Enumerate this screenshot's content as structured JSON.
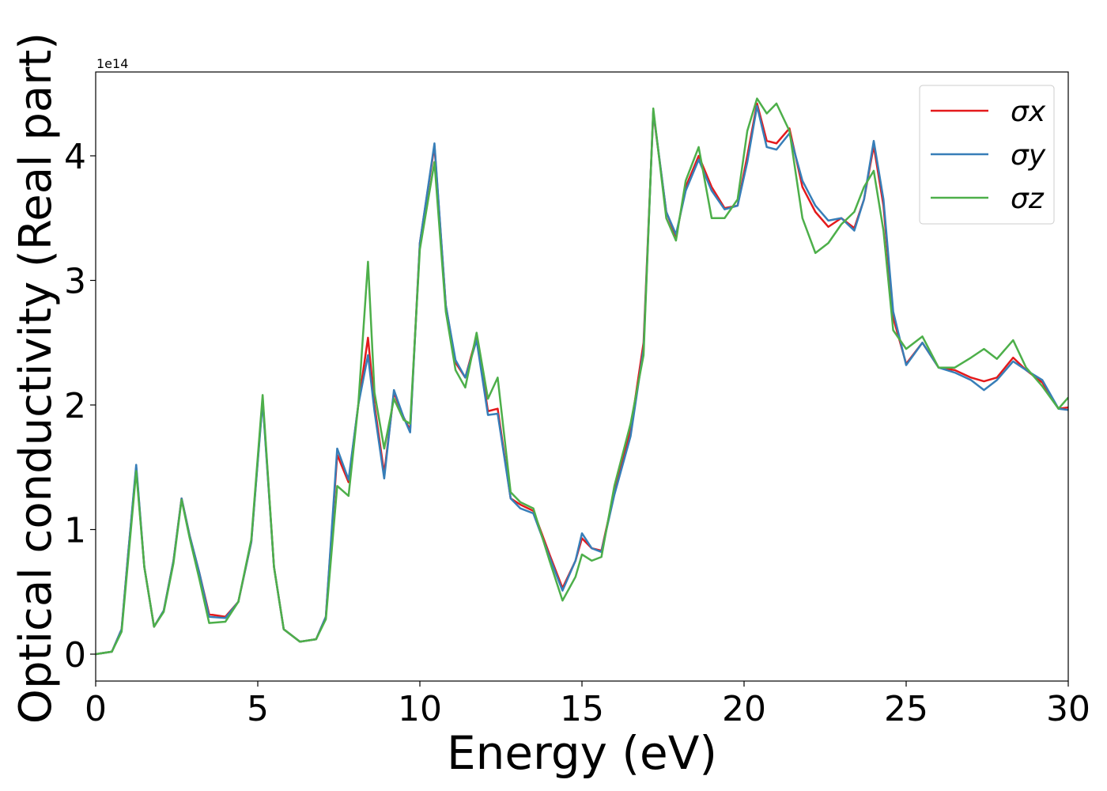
{
  "chart_data": {
    "type": "line",
    "xlabel": "Energy (eV)",
    "ylabel": "Optical conductivity (Real part)",
    "y_offset_label": "1e14",
    "xlim": [
      0,
      30
    ],
    "ylim": [
      -0.216,
      4.673
    ],
    "xticks": [
      0,
      5,
      10,
      15,
      20,
      25,
      30
    ],
    "yticks": [
      0,
      1,
      2,
      3,
      4
    ],
    "legend": "upper right",
    "x": [
      0,
      0.5,
      0.8,
      1.0,
      1.25,
      1.5,
      1.8,
      2.1,
      2.4,
      2.65,
      2.9,
      3.2,
      3.5,
      4.0,
      4.4,
      4.8,
      5.15,
      5.5,
      5.8,
      6.3,
      6.8,
      7.1,
      7.45,
      7.8,
      8.1,
      8.4,
      8.6,
      8.9,
      9.2,
      9.5,
      9.7,
      10.0,
      10.45,
      10.8,
      11.1,
      11.4,
      11.75,
      12.1,
      12.4,
      12.8,
      13.1,
      13.5,
      14.0,
      14.4,
      14.8,
      15.0,
      15.3,
      15.6,
      16.0,
      16.5,
      16.9,
      17.2,
      17.6,
      17.9,
      18.2,
      18.6,
      19.0,
      19.4,
      19.8,
      20.1,
      20.4,
      20.7,
      21.0,
      21.4,
      21.8,
      22.2,
      22.6,
      23.0,
      23.4,
      23.7,
      24.0,
      24.3,
      24.6,
      25.0,
      25.5,
      26.0,
      26.5,
      27.0,
      27.4,
      27.8,
      28.3,
      28.7,
      29.2,
      29.7,
      30
    ],
    "series": [
      {
        "name": "σx",
        "color": "#e41a1c",
        "values": [
          0,
          0.02,
          0.2,
          0.8,
          1.5,
          0.7,
          0.22,
          0.35,
          0.75,
          1.25,
          0.95,
          0.65,
          0.32,
          0.3,
          0.42,
          0.9,
          2.05,
          0.7,
          0.2,
          0.1,
          0.12,
          0.3,
          1.6,
          1.38,
          2.0,
          2.54,
          2.0,
          1.45,
          2.1,
          1.9,
          1.8,
          3.3,
          4.08,
          2.8,
          2.34,
          2.22,
          2.55,
          1.95,
          1.97,
          1.25,
          1.2,
          1.15,
          0.8,
          0.53,
          0.75,
          0.93,
          0.85,
          0.83,
          1.3,
          1.8,
          2.5,
          4.35,
          3.55,
          3.35,
          3.75,
          4.0,
          3.75,
          3.58,
          3.6,
          4.0,
          4.42,
          4.12,
          4.1,
          4.22,
          3.75,
          3.55,
          3.43,
          3.5,
          3.42,
          3.65,
          4.08,
          3.6,
          2.7,
          2.33,
          2.5,
          2.3,
          2.28,
          2.22,
          2.19,
          2.22,
          2.38,
          2.28,
          2.18,
          1.97,
          1.98
        ]
      },
      {
        "name": "σy",
        "color": "#377eb8",
        "values": [
          0,
          0.02,
          0.2,
          0.8,
          1.52,
          0.7,
          0.22,
          0.35,
          0.75,
          1.25,
          0.95,
          0.65,
          0.3,
          0.29,
          0.42,
          0.9,
          2.03,
          0.7,
          0.2,
          0.1,
          0.12,
          0.3,
          1.65,
          1.4,
          2.0,
          2.4,
          1.95,
          1.41,
          2.12,
          1.9,
          1.78,
          3.3,
          4.1,
          2.8,
          2.36,
          2.22,
          2.52,
          1.92,
          1.93,
          1.25,
          1.17,
          1.13,
          0.78,
          0.51,
          0.75,
          0.97,
          0.85,
          0.82,
          1.28,
          1.75,
          2.45,
          4.36,
          3.55,
          3.37,
          3.72,
          3.97,
          3.72,
          3.57,
          3.6,
          3.95,
          4.4,
          4.07,
          4.05,
          4.18,
          3.8,
          3.6,
          3.48,
          3.5,
          3.4,
          3.65,
          4.12,
          3.65,
          2.75,
          2.32,
          2.5,
          2.3,
          2.26,
          2.2,
          2.12,
          2.2,
          2.35,
          2.28,
          2.2,
          1.97,
          1.96
        ]
      },
      {
        "name": "σz",
        "color": "#4daf4a",
        "values": [
          0,
          0.02,
          0.18,
          0.75,
          1.47,
          0.7,
          0.22,
          0.34,
          0.73,
          1.24,
          0.93,
          0.6,
          0.25,
          0.26,
          0.42,
          0.92,
          2.08,
          0.7,
          0.2,
          0.1,
          0.12,
          0.28,
          1.35,
          1.27,
          2.0,
          3.15,
          2.1,
          1.65,
          2.05,
          1.88,
          1.85,
          3.25,
          3.95,
          2.75,
          2.28,
          2.14,
          2.58,
          2.05,
          2.22,
          1.3,
          1.22,
          1.17,
          0.75,
          0.43,
          0.62,
          0.8,
          0.75,
          0.78,
          1.35,
          1.85,
          2.4,
          4.38,
          3.5,
          3.32,
          3.8,
          4.07,
          3.5,
          3.5,
          3.65,
          4.2,
          4.46,
          4.34,
          4.42,
          4.2,
          3.5,
          3.22,
          3.3,
          3.45,
          3.55,
          3.75,
          3.88,
          3.4,
          2.6,
          2.45,
          2.55,
          2.3,
          2.3,
          2.38,
          2.45,
          2.37,
          2.52,
          2.3,
          2.15,
          1.97,
          2.06
        ]
      }
    ]
  }
}
